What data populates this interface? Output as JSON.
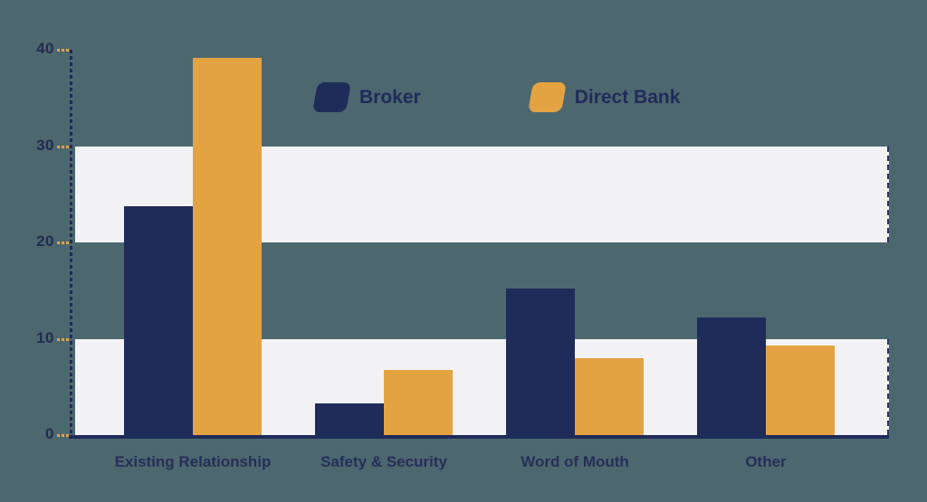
{
  "background_color": "#4D676F",
  "chart_data": {
    "type": "bar",
    "title": "",
    "categories": [
      "Existing Relationship",
      "Safety & Security",
      "Word of Mouth",
      "Other"
    ],
    "series": [
      {
        "name": "Broker",
        "color": "#1F2B59",
        "values": [
          23.8,
          3.3,
          15.2,
          12.2
        ]
      },
      {
        "name": "Direct Bank",
        "color": "#E4A343",
        "values": [
          39.2,
          6.8,
          8.0,
          9.3
        ]
      }
    ],
    "xlabel": "",
    "ylabel": "",
    "ylim": [
      0,
      40
    ],
    "yticks": [
      40,
      30,
      20,
      10,
      0
    ],
    "grid": "horizontal-bands",
    "band_value_ranges": [
      [
        20,
        30
      ],
      [
        0,
        10
      ]
    ],
    "band_color": "#F2F2F4",
    "axis_color": "#1F2B59",
    "tick_color": "#E4A343",
    "legend_position": "top-center"
  }
}
